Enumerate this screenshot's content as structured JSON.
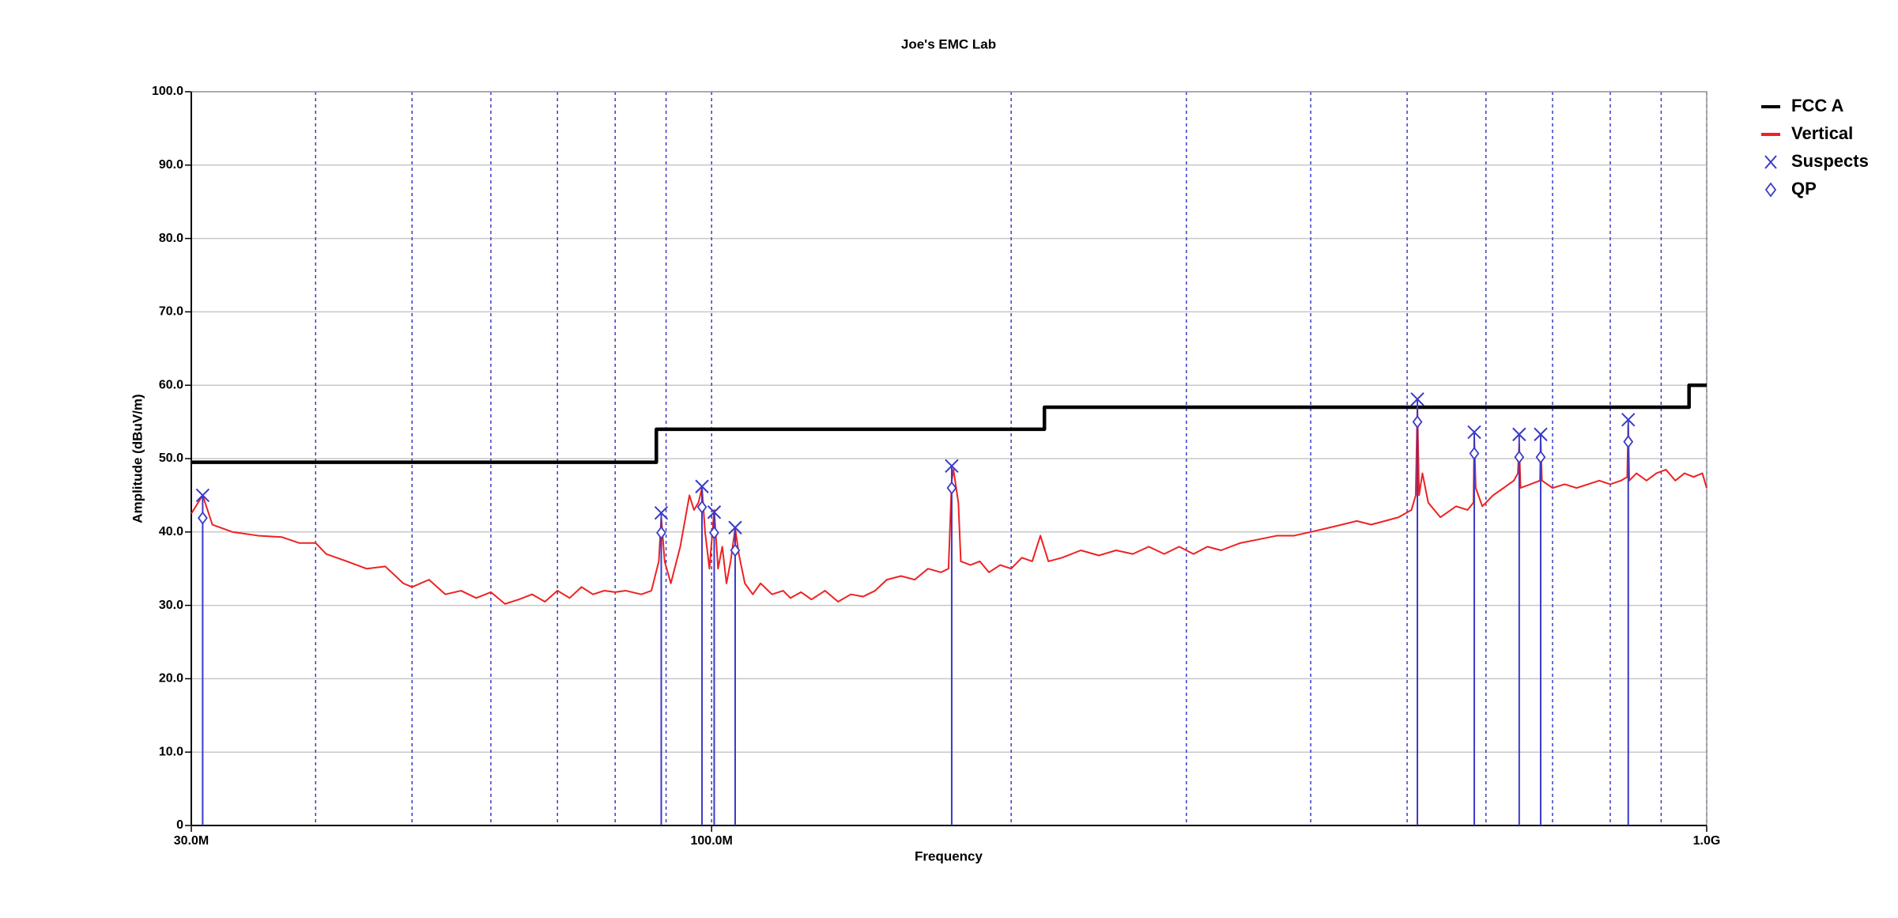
{
  "chart_data": {
    "type": "line",
    "title": "Joe's EMC Lab",
    "xlabel": "Frequency",
    "ylabel": "Amplitude (dBuV/m)",
    "xscale": "log",
    "xlim": [
      30,
      1000
    ],
    "xticks": [
      {
        "value": 30,
        "label": "30.0M"
      },
      {
        "value": 100,
        "label": "100.0M"
      },
      {
        "value": 1000,
        "label": "1.0G"
      }
    ],
    "xgrid": [
      40,
      50,
      60,
      70,
      80,
      90,
      200,
      300,
      400,
      500,
      600,
      700,
      800,
      900
    ],
    "ylim": [
      0,
      100
    ],
    "yticks": [
      0,
      {
        "value": 10,
        "label": "10.0"
      },
      {
        "value": 20,
        "label": "20.0"
      },
      {
        "value": 30,
        "label": "30.0"
      },
      {
        "value": 40,
        "label": "40.0"
      },
      {
        "value": 50,
        "label": "50.0"
      },
      {
        "value": 60,
        "label": "60.0"
      },
      {
        "value": 70,
        "label": "70.0"
      },
      {
        "value": 80,
        "label": "80.0"
      },
      {
        "value": 90,
        "label": "90.0"
      },
      {
        "value": 100,
        "label": "100.0"
      }
    ],
    "grid": true,
    "legend": "top-right",
    "series": [
      {
        "name": "FCC A",
        "color": "#000000",
        "kind": "line",
        "x": [
          30,
          88,
          88,
          216,
          216,
          960,
          960,
          1000
        ],
        "values": [
          49.5,
          49.5,
          54,
          54,
          57,
          57,
          60,
          60
        ]
      },
      {
        "name": "Vertical",
        "color": "#ee2222",
        "kind": "line",
        "x": [
          30,
          30.8,
          31.5,
          33,
          35,
          37,
          38.5,
          40,
          41,
          43,
          45,
          47,
          49,
          50,
          52,
          54,
          56,
          58,
          60,
          62,
          64,
          66,
          68,
          70,
          72,
          74,
          76,
          78,
          80,
          82,
          85,
          87,
          88.5,
          89,
          89.7,
          91,
          93,
          95,
          96,
          97,
          97.8,
          98.5,
          99.5,
          100.6,
          101.5,
          102.5,
          103.5,
          104.5,
          105.6,
          106.5,
          108,
          110,
          112,
          115,
          118,
          120,
          123,
          126,
          130,
          134,
          138,
          142,
          146,
          150,
          155,
          160,
          165,
          170,
          173,
          174.3,
          175,
          177,
          178,
          182,
          186,
          190,
          195,
          200,
          205,
          210,
          214,
          218,
          225,
          235,
          245,
          255,
          265,
          275,
          285,
          295,
          305,
          315,
          325,
          340,
          355,
          370,
          385,
          400,
          415,
          430,
          445,
          460,
          475,
          490,
          505,
          510,
          512,
          514,
          518,
          525,
          540,
          560,
          575,
          583,
          584,
          586,
          595,
          610,
          625,
          640,
          646,
          648,
          650,
          665,
          680,
          681,
          683,
          700,
          720,
          740,
          760,
          780,
          800,
          820,
          832,
          834,
          836,
          850,
          870,
          890,
          910,
          930,
          950,
          970,
          990,
          1000
        ],
        "values": [
          42.5,
          45,
          41,
          40,
          39.5,
          39.3,
          38.5,
          38.5,
          37,
          36,
          35,
          35.3,
          33,
          32.5,
          33.5,
          31.5,
          32,
          31,
          31.8,
          30.2,
          30.8,
          31.5,
          30.5,
          32,
          31,
          32.5,
          31.5,
          32,
          31.8,
          32,
          31.5,
          32,
          36,
          42,
          36,
          33,
          38,
          45,
          43,
          44,
          46,
          40,
          35,
          43,
          35,
          38,
          33,
          36,
          40.5,
          37,
          33,
          31.5,
          33,
          31.5,
          32,
          31,
          31.8,
          30.8,
          32,
          30.5,
          31.5,
          31.2,
          32,
          33.5,
          34,
          33.5,
          35,
          34.5,
          35,
          47,
          48.5,
          44,
          36,
          35.5,
          36,
          34.5,
          35.5,
          35,
          36.5,
          36,
          39.5,
          36,
          36.5,
          37.5,
          36.8,
          37.5,
          37,
          38,
          37,
          38,
          37,
          38,
          37.5,
          38.5,
          39,
          39.5,
          39.5,
          40,
          40.5,
          41,
          41.5,
          41,
          41.5,
          42,
          43,
          45,
          57,
          45,
          48,
          44,
          42,
          43.5,
          43,
          44,
          53,
          46,
          43.5,
          45,
          46,
          47,
          48,
          52,
          46,
          46.5,
          47,
          52.5,
          47,
          46,
          46.5,
          46,
          46.5,
          47,
          46.5,
          47,
          47.5,
          54.5,
          47,
          48,
          47,
          48,
          48.5,
          47,
          48,
          47.5,
          48,
          46
        ]
      },
      {
        "name": "Suspects",
        "color": "#3a3ac8",
        "kind": "x",
        "x": [
          30.8,
          89,
          97.8,
          100.6,
          105.6,
          174.3,
          512,
          584,
          648,
          681,
          834
        ],
        "values": [
          45.0,
          42.6,
          46.2,
          42.7,
          40.6,
          49.0,
          58.1,
          53.6,
          53.3,
          53.3,
          55.3
        ]
      },
      {
        "name": "QP",
        "color": "#3a3ac8",
        "kind": "diamond",
        "x": [
          30.8,
          89,
          97.8,
          100.6,
          105.6,
          174.3,
          512,
          584,
          648,
          681,
          834
        ],
        "values": [
          41.9,
          39.9,
          43.4,
          39.9,
          37.5,
          46.0,
          55.0,
          50.7,
          50.2,
          50.2,
          52.3
        ]
      }
    ]
  }
}
